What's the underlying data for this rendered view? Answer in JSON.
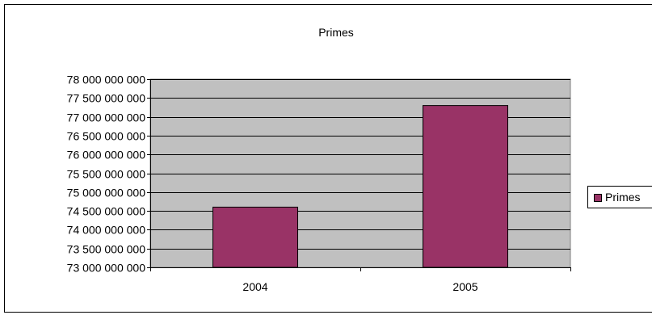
{
  "chart_data": {
    "type": "bar",
    "title": "Primes",
    "categories": [
      "2004",
      "2005"
    ],
    "series": [
      {
        "name": "Primes",
        "values": [
          74600000000,
          77300000000
        ],
        "color": "#993366"
      }
    ],
    "xlabel": "",
    "ylabel": "",
    "ylim": [
      73000000000,
      78000000000
    ],
    "y_ticks": [
      "73 000 000 000",
      "73 500 000 000",
      "74 000 000 000",
      "74 500 000 000",
      "75 000 000 000",
      "75 500 000 000",
      "76 000 000 000",
      "76 500 000 000",
      "77 000 000 000",
      "77 500 000 000",
      "78 000 000 000"
    ],
    "grid": true,
    "plot_background": "#c0c0c0",
    "legend": {
      "position": "right",
      "entries": [
        "Primes"
      ]
    }
  }
}
